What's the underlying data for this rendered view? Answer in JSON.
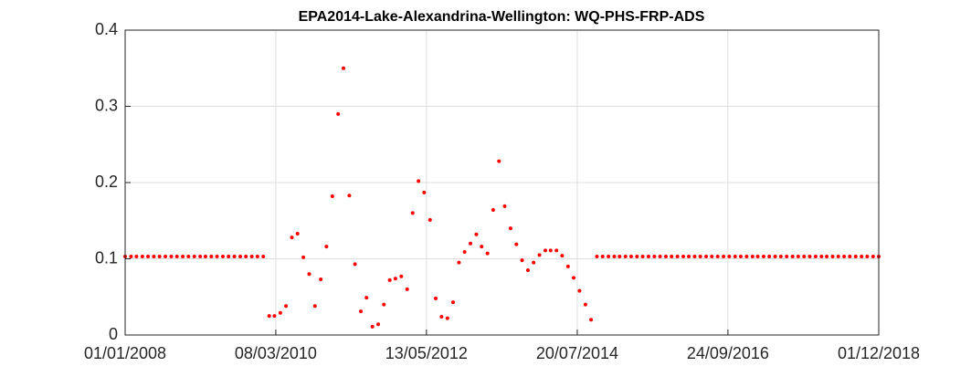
{
  "chart_data": {
    "type": "scatter",
    "title": "EPA2014-Lake-Alexandrina-Wellington: WQ-PHS-FRP-ADS",
    "x": [
      "2008-01-01",
      "2008-02-01",
      "2008-03-01",
      "2008-04-01",
      "2008-05-01",
      "2008-06-01",
      "2008-07-01",
      "2008-08-01",
      "2008-09-01",
      "2008-10-01",
      "2008-11-01",
      "2008-12-01",
      "2009-01-01",
      "2009-02-01",
      "2009-03-01",
      "2009-04-01",
      "2009-05-01",
      "2009-06-01",
      "2009-07-01",
      "2009-08-01",
      "2009-09-01",
      "2009-10-01",
      "2009-11-01",
      "2009-12-01",
      "2010-01-01",
      "2010-02-01",
      "2010-03-01",
      "2010-04-01",
      "2010-05-01",
      "2010-06-01",
      "2010-07-01",
      "2010-08-01",
      "2010-09-01",
      "2010-10-01",
      "2010-11-01",
      "2010-12-01",
      "2011-01-01",
      "2011-02-01",
      "2011-03-01",
      "2011-04-01",
      "2011-05-01",
      "2011-06-01",
      "2011-07-01",
      "2011-08-01",
      "2011-09-01",
      "2011-10-01",
      "2011-11-01",
      "2011-12-01",
      "2012-01-01",
      "2012-02-01",
      "2012-03-01",
      "2012-04-01",
      "2012-05-01",
      "2012-06-01",
      "2012-07-01",
      "2012-08-01",
      "2012-09-01",
      "2012-10-01",
      "2012-11-01",
      "2012-12-01",
      "2013-01-01",
      "2013-02-01",
      "2013-03-01",
      "2013-04-01",
      "2013-05-01",
      "2013-06-01",
      "2013-07-01",
      "2013-08-01",
      "2013-09-01",
      "2013-10-01",
      "2013-11-01",
      "2013-12-01",
      "2014-01-01",
      "2014-02-01",
      "2014-03-01",
      "2014-04-01",
      "2014-05-01",
      "2014-06-01",
      "2014-07-01",
      "2014-08-01",
      "2014-09-01",
      "2014-10-01",
      "2014-11-01",
      "2014-12-01",
      "2015-01-01",
      "2015-02-01",
      "2015-03-01",
      "2015-04-01",
      "2015-05-01",
      "2015-06-01",
      "2015-07-01",
      "2015-08-01",
      "2015-09-01",
      "2015-10-01",
      "2015-11-01",
      "2015-12-01",
      "2016-01-01",
      "2016-02-01",
      "2016-03-01",
      "2016-04-01",
      "2016-05-01",
      "2016-06-01",
      "2016-07-01",
      "2016-08-01",
      "2016-09-01",
      "2016-10-01",
      "2016-11-01",
      "2016-12-01",
      "2017-01-01",
      "2017-02-01",
      "2017-03-01",
      "2017-04-01",
      "2017-05-01",
      "2017-06-01",
      "2017-07-01",
      "2017-08-01",
      "2017-09-01",
      "2017-10-01",
      "2017-11-01",
      "2017-12-01",
      "2018-01-01",
      "2018-02-01",
      "2018-03-01",
      "2018-04-01",
      "2018-05-01",
      "2018-06-01",
      "2018-07-01",
      "2018-08-01",
      "2018-09-01",
      "2018-10-01",
      "2018-11-01",
      "2018-12-01"
    ],
    "series": [
      {
        "color": "#ff0000",
        "values": [
          0.103,
          0.103,
          0.103,
          0.103,
          0.103,
          0.103,
          0.103,
          0.103,
          0.103,
          0.103,
          0.103,
          0.103,
          0.103,
          0.103,
          0.103,
          0.103,
          0.103,
          0.103,
          0.103,
          0.103,
          0.103,
          0.103,
          0.103,
          0.103,
          0.103,
          0.025,
          0.025,
          0.029,
          0.038,
          0.128,
          0.133,
          0.102,
          0.08,
          0.038,
          0.073,
          0.116,
          0.182,
          0.29,
          0.35,
          0.183,
          0.093,
          0.031,
          0.049,
          0.011,
          0.014,
          0.04,
          0.072,
          0.074,
          0.077,
          0.06,
          0.16,
          0.202,
          0.187,
          0.151,
          0.048,
          0.024,
          0.022,
          0.043,
          0.095,
          0.109,
          0.12,
          0.132,
          0.116,
          0.107,
          0.164,
          0.228,
          0.169,
          0.14,
          0.119,
          0.098,
          0.085,
          0.095,
          0.105,
          0.111,
          0.111,
          0.111,
          0.104,
          0.09,
          0.075,
          0.058,
          0.04,
          0.02,
          0.103,
          0.103,
          0.103,
          0.103,
          0.103,
          0.103,
          0.103,
          0.103,
          0.103,
          0.103,
          0.103,
          0.103,
          0.103,
          0.103,
          0.103,
          0.103,
          0.103,
          0.103,
          0.103,
          0.103,
          0.103,
          0.103,
          0.103,
          0.103,
          0.103,
          0.103,
          0.103,
          0.103,
          0.103,
          0.103,
          0.103,
          0.103,
          0.103,
          0.103,
          0.103,
          0.103,
          0.103,
          0.103,
          0.103,
          0.103,
          0.103,
          0.103,
          0.103,
          0.103,
          0.103,
          0.103,
          0.103,
          0.103,
          0.103,
          0.103
        ]
      }
    ],
    "xlim": [
      "2008-01-01",
      "2018-12-01"
    ],
    "xticks": [
      {
        "value": "2008-01-01",
        "label": "01/01/2008"
      },
      {
        "value": "2010-03-08",
        "label": "08/03/2010"
      },
      {
        "value": "2012-05-13",
        "label": "13/05/2012"
      },
      {
        "value": "2014-07-20",
        "label": "20/07/2014"
      },
      {
        "value": "2016-09-24",
        "label": "24/09/2016"
      },
      {
        "value": "2018-12-01",
        "label": "01/12/2018"
      }
    ],
    "ylim": [
      0,
      0.4
    ],
    "yticks": [
      0,
      0.1,
      0.2,
      0.3,
      0.4
    ],
    "grid": true
  }
}
